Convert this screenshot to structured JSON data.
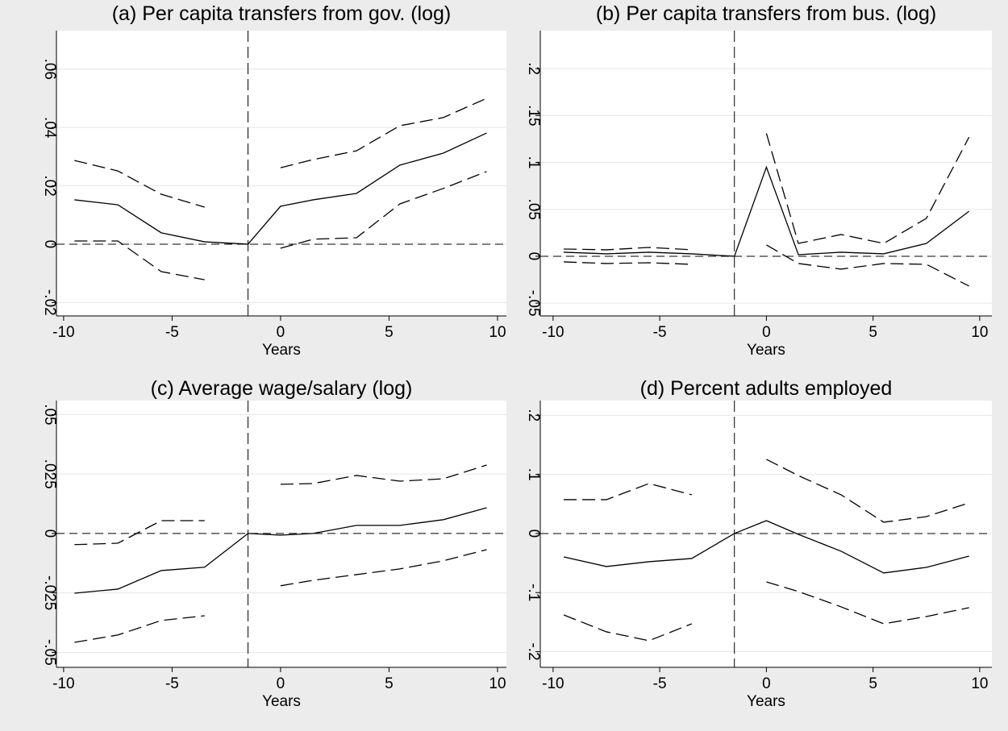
{
  "chart_data": [
    {
      "type": "line",
      "title": "(a) Per capita transfers from gov. (log)",
      "xlabel": "Years",
      "x": [
        -9.5,
        -7.5,
        -5.5,
        -3.5,
        -1.5,
        0,
        1.5,
        3.5,
        5.5,
        7.5,
        9.5
      ],
      "series": [
        {
          "style": "solid",
          "color": "#000000",
          "values": [
            0.0152,
            0.0135,
            0.0039,
            0.0008,
            0,
            0.013,
            0.0152,
            0.0174,
            0.0271,
            0.0312,
            0.0381
          ]
        },
        {
          "style": "dashed",
          "color": "#000000",
          "values": [
            0.0287,
            0.0251,
            0.0171,
            0.0127,
            null,
            0.0262,
            0.029,
            0.032,
            0.0406,
            0.0434,
            0.05
          ]
        },
        {
          "style": "dashed",
          "color": "#000000",
          "values": [
            0.0011,
            0.0011,
            -0.0094,
            -0.0122,
            null,
            -0.0014,
            0.0017,
            0.0022,
            0.0138,
            0.0191,
            0.0249
          ]
        }
      ],
      "xlim": [
        -10.33,
        10.41
      ],
      "ylim": [
        -0.0246,
        0.0732
      ],
      "xticks": [
        -10,
        -5,
        0,
        5,
        10
      ],
      "yticks": [
        {
          "value": -0.02,
          "label": "-.02"
        },
        0,
        {
          "value": 0.02,
          "label": ".02"
        },
        {
          "value": 0.04,
          "label": ".04"
        },
        {
          "value": 0.06,
          "label": ".06"
        }
      ],
      "grid": true,
      "vline": -1.5,
      "hline": 0
    },
    {
      "type": "line",
      "title": "(b) Per capita transfers from bus. (log)",
      "xlabel": "Years",
      "x": [
        -9.5,
        -7.5,
        -5.5,
        -3.5,
        -1.5,
        0,
        1.5,
        3.5,
        5.5,
        7.5,
        9.5
      ],
      "series": [
        {
          "style": "solid",
          "color": "#000000",
          "values": [
            0.0043,
            0.0026,
            0.0043,
            0.0026,
            0,
            0.095,
            0.0017,
            0.0043,
            0.0026,
            0.0137,
            0.048
          ]
        },
        {
          "style": "dashed",
          "color": "#000000",
          "values": [
            0.0077,
            0.0069,
            0.0094,
            0.0069,
            null,
            0.131,
            0.0137,
            0.0232,
            0.0137,
            0.0404,
            0.127
          ]
        },
        {
          "style": "dashed",
          "color": "#000000",
          "values": [
            -0.006,
            -0.0077,
            -0.0069,
            -0.0086,
            null,
            0.012,
            -0.0077,
            -0.0137,
            -0.0077,
            -0.0086,
            -0.0318
          ]
        }
      ],
      "xlim": [
        -10.6,
        10.57
      ],
      "ylim": [
        -0.0636,
        0.2405
      ],
      "xticks": [
        -10,
        -5,
        0,
        5,
        10
      ],
      "yticks": [
        {
          "value": -0.05,
          "label": "-.05"
        },
        0,
        {
          "value": 0.05,
          "label": ".05"
        },
        {
          "value": 0.1,
          "label": ".1"
        },
        {
          "value": 0.15,
          "label": ".15"
        },
        {
          "value": 0.2,
          "label": ".2"
        }
      ],
      "grid": true,
      "vline": -1.5,
      "hline": 0
    },
    {
      "type": "line",
      "title": "(c) Average wage/salary (log)",
      "xlabel": "Years",
      "x": [
        -9.5,
        -7.5,
        -5.5,
        -3.5,
        -1.5,
        0,
        1.5,
        3.5,
        5.5,
        7.5,
        9.5
      ],
      "series": [
        {
          "style": "solid",
          "color": "#000000",
          "values": [
            -0.0251,
            -0.0234,
            -0.0156,
            -0.0142,
            0,
            -0.0007,
            0,
            0.0034,
            0.0034,
            0.0058,
            0.0108
          ]
        },
        {
          "style": "dashed",
          "color": "#000000",
          "values": [
            -0.0047,
            -0.0041,
            0.0054,
            0.0054,
            null,
            0.0207,
            0.021,
            0.0244,
            0.022,
            0.023,
            0.0288
          ]
        },
        {
          "style": "dashed",
          "color": "#000000",
          "values": [
            -0.0458,
            -0.0427,
            -0.0366,
            -0.0346,
            null,
            -0.022,
            -0.0197,
            -0.0173,
            -0.0149,
            -0.0115,
            -0.0068
          ]
        }
      ],
      "xlim": [
        -10.33,
        10.41
      ],
      "ylim": [
        -0.0563,
        0.0559
      ],
      "xticks": [
        -10,
        -5,
        0,
        5,
        10
      ],
      "yticks": [
        {
          "value": -0.05,
          "label": "-.05"
        },
        {
          "value": -0.025,
          "label": "-.025"
        },
        0,
        {
          "value": 0.025,
          "label": ".025"
        },
        {
          "value": 0.05,
          "label": ".05"
        }
      ],
      "grid": true,
      "vline": -1.5,
      "hline": 0
    },
    {
      "type": "line",
      "title": "(d) Percent adults employed",
      "xlabel": "Years",
      "x": [
        -9.5,
        -7.5,
        -5.5,
        -3.5,
        -1.5,
        0,
        1.5,
        3.5,
        5.5,
        7.5,
        9.5
      ],
      "series": [
        {
          "style": "solid",
          "color": "#000000",
          "values": [
            -0.0396,
            -0.0559,
            -0.0477,
            -0.0423,
            0,
            0.0218,
            -0.0014,
            -0.03,
            -0.0668,
            -0.0573,
            -0.0382
          ]
        },
        {
          "style": "dashed",
          "color": "#000000",
          "values": [
            0.0573,
            0.0573,
            0.0846,
            0.0655,
            null,
            0.1255,
            0.098,
            0.0655,
            0.0191,
            0.0286,
            0.0518
          ]
        },
        {
          "style": "dashed",
          "color": "#000000",
          "values": [
            -0.1378,
            -0.1664,
            -0.1814,
            -0.1528,
            null,
            -0.0819,
            -0.0982,
            -0.1241,
            -0.1528,
            -0.1405,
            -0.1255
          ]
        }
      ],
      "xlim": [
        -10.6,
        10.57
      ],
      "ylim": [
        -0.2265,
        0.225
      ],
      "xticks": [
        -10,
        -5,
        0,
        5,
        10
      ],
      "yticks": [
        {
          "value": -0.2,
          "label": "-.2"
        },
        {
          "value": -0.1,
          "label": "-.1"
        },
        0,
        {
          "value": 0.1,
          "label": ".1"
        },
        {
          "value": 0.2,
          "label": ".2"
        }
      ],
      "grid": true,
      "vline": -1.5,
      "hline": 0
    }
  ]
}
